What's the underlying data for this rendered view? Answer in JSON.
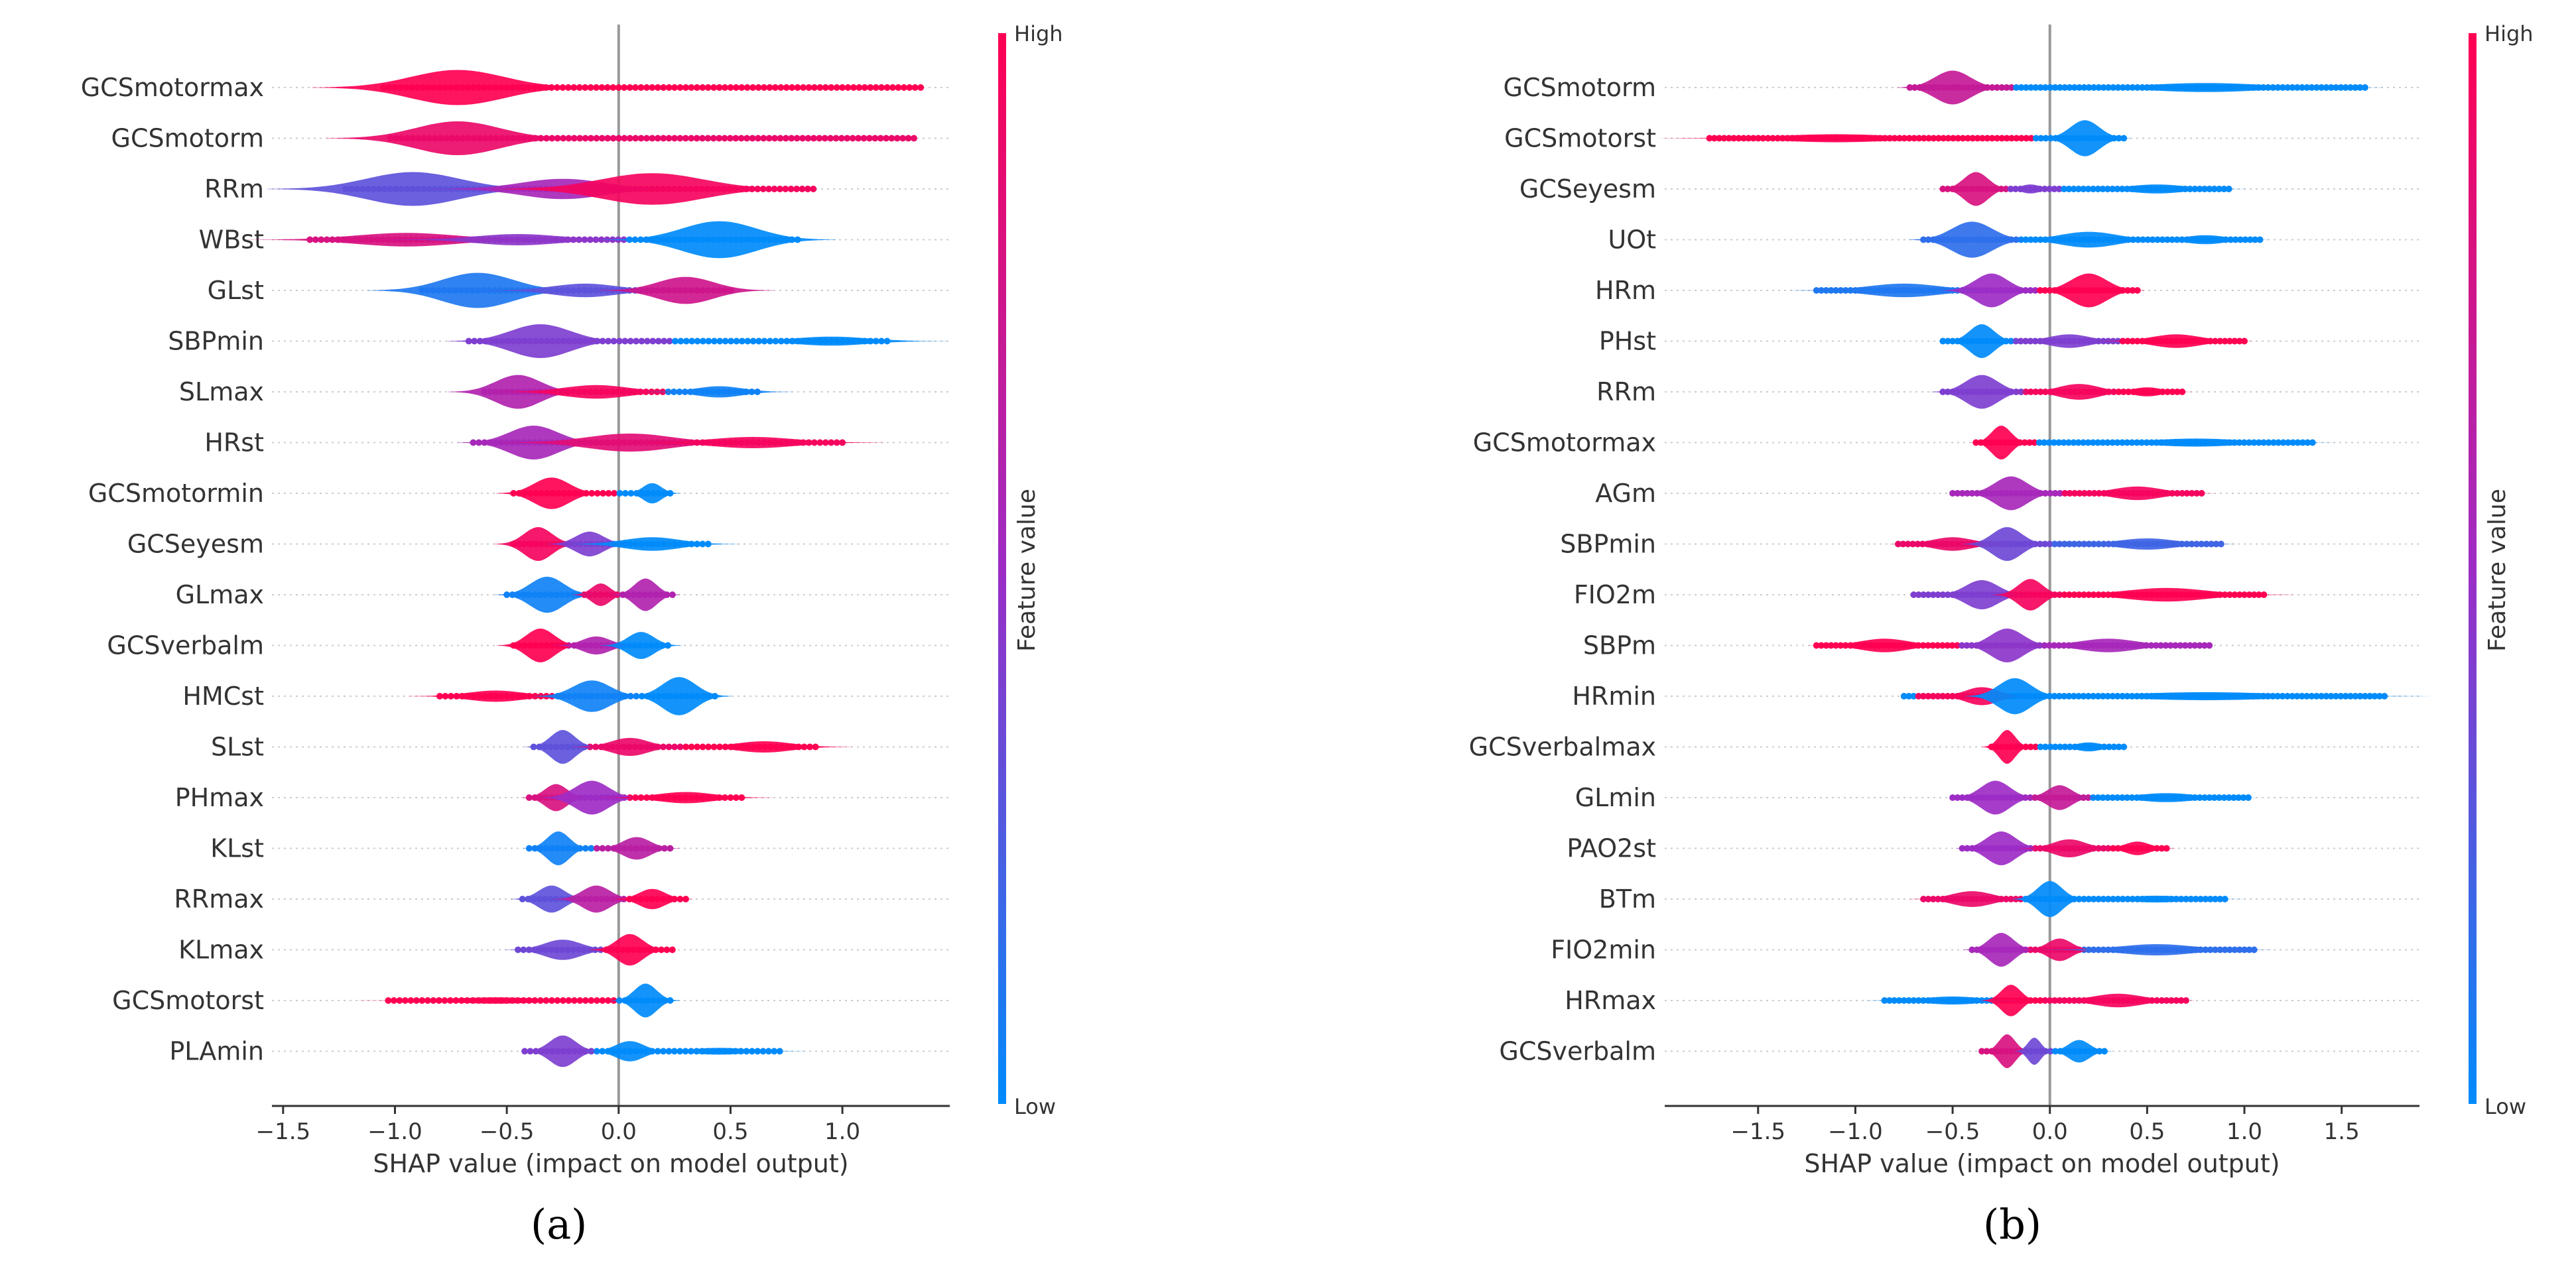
{
  "chart_data": [
    {
      "type": "violin",
      "panel_label": "(a)",
      "xlabel": "SHAP value (impact on model output)",
      "xlim": [
        -1.55,
        1.48
      ],
      "xticks": [
        -1.5,
        -1.0,
        -0.5,
        0.0,
        0.5,
        1.0
      ],
      "xtick_labels": [
        "−1.5",
        "−1.0",
        "−0.5",
        "0.0",
        "0.5",
        "1.0"
      ],
      "colorbar": {
        "label": "Feature value",
        "high": "High",
        "low": "Low",
        "high_color": "#ff0052",
        "mid_color": "#9d2cc5",
        "low_color": "#008bfb"
      },
      "features": [
        {
          "name": "GCSmotormax",
          "low": -1.05,
          "high": 1.35,
          "bulges": [
            {
              "x": -0.72,
              "w": 0.5,
              "h": 0.78,
              "c": 0
            }
          ]
        },
        {
          "name": "GCSmotorm",
          "low": -1.02,
          "high": 1.32,
          "bulges": [
            {
              "x": -0.72,
              "w": 0.45,
              "h": 0.75,
              "c": 0.1
            }
          ]
        },
        {
          "name": "RRm",
          "low": -1.22,
          "high": 0.87,
          "bulges": [
            {
              "x": -0.92,
              "w": 0.5,
              "h": 0.75,
              "c": 0.7
            },
            {
              "x": -0.25,
              "w": 0.45,
              "h": 0.45,
              "c": 0.45
            },
            {
              "x": 0.15,
              "w": 0.55,
              "h": 0.7,
              "c": 0.05
            }
          ]
        },
        {
          "name": "WBst",
          "low": -1.38,
          "high": 0.8,
          "bulges": [
            {
              "x": -0.95,
              "w": 0.55,
              "h": 0.3,
              "c": 0.2
            },
            {
              "x": -0.45,
              "w": 0.45,
              "h": 0.25,
              "c": 0.55
            },
            {
              "x": 0.45,
              "w": 0.4,
              "h": 0.82,
              "c": 1
            }
          ]
        },
        {
          "name": "GLst",
          "low": -0.88,
          "high": 0.5,
          "bulges": [
            {
              "x": -0.63,
              "w": 0.38,
              "h": 0.78,
              "c": 0.9
            },
            {
              "x": -0.15,
              "w": 0.35,
              "h": 0.3,
              "c": 0.7
            },
            {
              "x": 0.3,
              "w": 0.3,
              "h": 0.6,
              "c": 0.25
            }
          ]
        },
        {
          "name": "SBPmin",
          "low": -0.67,
          "high": 1.2,
          "bulges": [
            {
              "x": -0.35,
              "w": 0.32,
              "h": 0.75,
              "c": 0.6
            },
            {
              "x": 0.95,
              "w": 0.4,
              "h": 0.2,
              "c": 1
            }
          ]
        },
        {
          "name": "SLmax",
          "low": -0.6,
          "high": 0.62,
          "bulges": [
            {
              "x": -0.45,
              "w": 0.24,
              "h": 0.75,
              "c": 0.4
            },
            {
              "x": -0.1,
              "w": 0.35,
              "h": 0.3,
              "c": 0.05
            },
            {
              "x": 0.45,
              "w": 0.25,
              "h": 0.25,
              "c": 0.95
            }
          ]
        },
        {
          "name": "HRst",
          "low": -0.65,
          "high": 1.0,
          "bulges": [
            {
              "x": -0.38,
              "w": 0.26,
              "h": 0.75,
              "c": 0.45
            },
            {
              "x": 0.05,
              "w": 0.45,
              "h": 0.4,
              "c": 0.15
            },
            {
              "x": 0.6,
              "w": 0.45,
              "h": 0.25,
              "c": 0.05
            }
          ]
        },
        {
          "name": "GCSmotormin",
          "low": -0.47,
          "high": 0.23,
          "bulges": [
            {
              "x": -0.3,
              "w": 0.19,
              "h": 0.7,
              "c": 0
            },
            {
              "x": 0.15,
              "w": 0.1,
              "h": 0.45,
              "c": 1
            }
          ]
        },
        {
          "name": "GCSeyesm",
          "low": -0.47,
          "high": 0.4,
          "bulges": [
            {
              "x": -0.36,
              "w": 0.15,
              "h": 0.75,
              "c": 0.05
            },
            {
              "x": -0.13,
              "w": 0.15,
              "h": 0.55,
              "c": 0.6
            },
            {
              "x": 0.15,
              "w": 0.3,
              "h": 0.3,
              "c": 1
            }
          ]
        },
        {
          "name": "GLmax",
          "low": -0.5,
          "high": 0.24,
          "bulges": [
            {
              "x": -0.32,
              "w": 0.18,
              "h": 0.8,
              "c": 0.95
            },
            {
              "x": -0.08,
              "w": 0.1,
              "h": 0.5,
              "c": 0.1
            },
            {
              "x": 0.12,
              "w": 0.12,
              "h": 0.72,
              "c": 0.4
            }
          ]
        },
        {
          "name": "GCSverbalm",
          "low": -0.47,
          "high": 0.22,
          "bulges": [
            {
              "x": -0.35,
              "w": 0.15,
              "h": 0.75,
              "c": 0
            },
            {
              "x": -0.1,
              "w": 0.15,
              "h": 0.4,
              "c": 0.4
            },
            {
              "x": 0.1,
              "w": 0.14,
              "h": 0.6,
              "c": 1
            }
          ]
        },
        {
          "name": "HMCst",
          "low": -0.8,
          "high": 0.43,
          "bulges": [
            {
              "x": -0.55,
              "w": 0.3,
              "h": 0.25,
              "c": 0
            },
            {
              "x": -0.12,
              "w": 0.2,
              "h": 0.7,
              "c": 0.95
            },
            {
              "x": 0.27,
              "w": 0.18,
              "h": 0.85,
              "c": 1
            }
          ]
        },
        {
          "name": "SLst",
          "low": -0.38,
          "high": 0.88,
          "bulges": [
            {
              "x": -0.25,
              "w": 0.13,
              "h": 0.75,
              "c": 0.7
            },
            {
              "x": 0.05,
              "w": 0.2,
              "h": 0.4,
              "c": 0.1
            },
            {
              "x": 0.65,
              "w": 0.3,
              "h": 0.25,
              "c": 0
            }
          ]
        },
        {
          "name": "PHmax",
          "low": -0.4,
          "high": 0.55,
          "bulges": [
            {
              "x": -0.28,
              "w": 0.12,
              "h": 0.6,
              "c": 0.2
            },
            {
              "x": -0.12,
              "w": 0.18,
              "h": 0.75,
              "c": 0.5
            },
            {
              "x": 0.3,
              "w": 0.3,
              "h": 0.25,
              "c": 0
            }
          ]
        },
        {
          "name": "KLst",
          "low": -0.4,
          "high": 0.23,
          "bulges": [
            {
              "x": -0.27,
              "w": 0.12,
              "h": 0.75,
              "c": 0.95
            },
            {
              "x": 0.08,
              "w": 0.15,
              "h": 0.5,
              "c": 0.35
            }
          ]
        },
        {
          "name": "RRmax",
          "low": -0.43,
          "high": 0.3,
          "bulges": [
            {
              "x": -0.3,
              "w": 0.14,
              "h": 0.6,
              "c": 0.7
            },
            {
              "x": -0.1,
              "w": 0.15,
              "h": 0.6,
              "c": 0.35
            },
            {
              "x": 0.15,
              "w": 0.14,
              "h": 0.45,
              "c": 0
            }
          ]
        },
        {
          "name": "KLmax",
          "low": -0.45,
          "high": 0.24,
          "bulges": [
            {
              "x": -0.25,
              "w": 0.2,
              "h": 0.45,
              "c": 0.65
            },
            {
              "x": 0.05,
              "w": 0.14,
              "h": 0.7,
              "c": 0
            }
          ]
        },
        {
          "name": "GCSmotorst",
          "low": -1.03,
          "high": 0.23,
          "bulges": [
            {
              "x": -0.55,
              "w": 0.48,
              "h": 0.14,
              "c": 0
            },
            {
              "x": 0.12,
              "w": 0.12,
              "h": 0.75,
              "c": 1
            }
          ]
        },
        {
          "name": "PLAmin",
          "low": -0.42,
          "high": 0.72,
          "bulges": [
            {
              "x": -0.25,
              "w": 0.14,
              "h": 0.7,
              "c": 0.6
            },
            {
              "x": 0.05,
              "w": 0.15,
              "h": 0.45,
              "c": 1
            },
            {
              "x": 0.45,
              "w": 0.3,
              "h": 0.15,
              "c": 1
            }
          ]
        }
      ]
    },
    {
      "type": "violin",
      "panel_label": "(b)",
      "xlabel": "SHAP value (impact on model output)",
      "xlim": [
        -1.98,
        1.9
      ],
      "xticks": [
        -1.5,
        -1.0,
        -0.5,
        0.0,
        0.5,
        1.0,
        1.5
      ],
      "xtick_labels": [
        "−1.5",
        "−1.0",
        "−0.5",
        "0.0",
        "0.5",
        "1.0",
        "1.5"
      ],
      "colorbar": {
        "label": "Feature value",
        "high": "High",
        "low": "Low",
        "high_color": "#ff0052",
        "mid_color": "#9d2cc5",
        "low_color": "#008bfb"
      },
      "features": [
        {
          "name": "GCSmotorm",
          "low": -0.72,
          "high": 1.62,
          "bulges": [
            {
              "x": -0.5,
              "w": 0.22,
              "h": 0.75,
              "c": 0.3
            },
            {
              "x": 0.8,
              "w": 0.7,
              "h": 0.2,
              "c": 1
            }
          ]
        },
        {
          "name": "GCSmotorst",
          "low": -1.75,
          "high": 0.38,
          "bulges": [
            {
              "x": -1.1,
              "w": 0.7,
              "h": 0.18,
              "c": 0
            },
            {
              "x": 0.18,
              "w": 0.18,
              "h": 0.8,
              "c": 1
            }
          ]
        },
        {
          "name": "GCSeyesm",
          "low": -0.55,
          "high": 0.92,
          "bulges": [
            {
              "x": -0.38,
              "w": 0.15,
              "h": 0.75,
              "c": 0.2
            },
            {
              "x": -0.1,
              "w": 0.12,
              "h": 0.2,
              "c": 0.6
            },
            {
              "x": 0.55,
              "w": 0.35,
              "h": 0.2,
              "c": 1
            }
          ]
        },
        {
          "name": "UOt",
          "low": -0.65,
          "high": 1.08,
          "bulges": [
            {
              "x": -0.4,
              "w": 0.25,
              "h": 0.8,
              "c": 0.85
            },
            {
              "x": 0.2,
              "w": 0.35,
              "h": 0.35,
              "c": 1
            },
            {
              "x": 0.8,
              "w": 0.25,
              "h": 0.2,
              "c": 1
            }
          ]
        },
        {
          "name": "HRm",
          "low": -1.2,
          "high": 0.45,
          "bulges": [
            {
              "x": -0.75,
              "w": 0.45,
              "h": 0.3,
              "c": 0.9
            },
            {
              "x": -0.3,
              "w": 0.2,
              "h": 0.75,
              "c": 0.5
            },
            {
              "x": 0.2,
              "w": 0.22,
              "h": 0.75,
              "c": 0
            }
          ]
        },
        {
          "name": "PHst",
          "low": -0.55,
          "high": 1.0,
          "bulges": [
            {
              "x": -0.35,
              "w": 0.15,
              "h": 0.75,
              "c": 1
            },
            {
              "x": 0.1,
              "w": 0.25,
              "h": 0.3,
              "c": 0.6
            },
            {
              "x": 0.65,
              "w": 0.3,
              "h": 0.3,
              "c": 0
            }
          ]
        },
        {
          "name": "RRm",
          "low": -0.55,
          "high": 0.68,
          "bulges": [
            {
              "x": -0.35,
              "w": 0.2,
              "h": 0.75,
              "c": 0.6
            },
            {
              "x": 0.15,
              "w": 0.25,
              "h": 0.35,
              "c": 0.05
            },
            {
              "x": 0.5,
              "w": 0.18,
              "h": 0.2,
              "c": 0
            }
          ]
        },
        {
          "name": "GCSmotormax",
          "low": -0.38,
          "high": 1.35,
          "bulges": [
            {
              "x": -0.25,
              "w": 0.12,
              "h": 0.75,
              "c": 0
            },
            {
              "x": 0.75,
              "w": 0.55,
              "h": 0.18,
              "c": 1
            }
          ]
        },
        {
          "name": "AGm",
          "low": -0.5,
          "high": 0.78,
          "bulges": [
            {
              "x": -0.2,
              "w": 0.2,
              "h": 0.75,
              "c": 0.45
            },
            {
              "x": 0.45,
              "w": 0.3,
              "h": 0.3,
              "c": 0.05
            }
          ]
        },
        {
          "name": "SBPmin",
          "low": -0.78,
          "high": 0.88,
          "bulges": [
            {
              "x": -0.5,
              "w": 0.25,
              "h": 0.3,
              "c": 0.1
            },
            {
              "x": -0.22,
              "w": 0.18,
              "h": 0.75,
              "c": 0.65
            },
            {
              "x": 0.5,
              "w": 0.35,
              "h": 0.25,
              "c": 0.8
            }
          ]
        },
        {
          "name": "FIO2m",
          "low": -0.7,
          "high": 1.1,
          "bulges": [
            {
              "x": -0.35,
              "w": 0.2,
              "h": 0.65,
              "c": 0.6
            },
            {
              "x": -0.1,
              "w": 0.15,
              "h": 0.7,
              "c": 0.05
            },
            {
              "x": 0.6,
              "w": 0.5,
              "h": 0.3,
              "c": 0
            }
          ]
        },
        {
          "name": "SBPm",
          "low": -1.2,
          "high": 0.82,
          "bulges": [
            {
              "x": -0.85,
              "w": 0.3,
              "h": 0.3,
              "c": 0
            },
            {
              "x": -0.22,
              "w": 0.2,
              "h": 0.75,
              "c": 0.55
            },
            {
              "x": 0.3,
              "w": 0.35,
              "h": 0.3,
              "c": 0.45
            }
          ]
        },
        {
          "name": "HRmin",
          "low": -0.75,
          "high": 1.72,
          "bulges": [
            {
              "x": -0.35,
              "w": 0.2,
              "h": 0.4,
              "c": 0.05
            },
            {
              "x": -0.18,
              "w": 0.2,
              "h": 0.8,
              "c": 1
            },
            {
              "x": 0.8,
              "w": 0.9,
              "h": 0.18,
              "c": 1
            }
          ]
        },
        {
          "name": "GCSverbalmax",
          "low": -0.3,
          "high": 0.38,
          "bulges": [
            {
              "x": -0.22,
              "w": 0.1,
              "h": 0.75,
              "c": 0
            },
            {
              "x": 0.2,
              "w": 0.16,
              "h": 0.2,
              "c": 1
            }
          ]
        },
        {
          "name": "GLmin",
          "low": -0.5,
          "high": 1.02,
          "bulges": [
            {
              "x": -0.28,
              "w": 0.18,
              "h": 0.75,
              "c": 0.5
            },
            {
              "x": 0.05,
              "w": 0.15,
              "h": 0.55,
              "c": 0.3
            },
            {
              "x": 0.6,
              "w": 0.35,
              "h": 0.2,
              "c": 1
            }
          ]
        },
        {
          "name": "PAO2st",
          "low": -0.45,
          "high": 0.6,
          "bulges": [
            {
              "x": -0.25,
              "w": 0.18,
              "h": 0.75,
              "c": 0.5
            },
            {
              "x": 0.1,
              "w": 0.2,
              "h": 0.4,
              "c": 0.1
            },
            {
              "x": 0.45,
              "w": 0.15,
              "h": 0.3,
              "c": 0
            }
          ]
        },
        {
          "name": "BTm",
          "low": -0.65,
          "high": 0.9,
          "bulges": [
            {
              "x": -0.4,
              "w": 0.25,
              "h": 0.35,
              "c": 0.1
            },
            {
              "x": 0.0,
              "w": 0.15,
              "h": 0.8,
              "c": 1
            },
            {
              "x": 0.55,
              "w": 0.35,
              "h": 0.15,
              "c": 1
            }
          ]
        },
        {
          "name": "FIO2min",
          "low": -0.4,
          "high": 1.05,
          "bulges": [
            {
              "x": -0.25,
              "w": 0.15,
              "h": 0.75,
              "c": 0.45
            },
            {
              "x": 0.05,
              "w": 0.15,
              "h": 0.5,
              "c": 0.1
            },
            {
              "x": 0.55,
              "w": 0.45,
              "h": 0.25,
              "c": 0.85
            }
          ]
        },
        {
          "name": "HRmax",
          "low": -0.85,
          "high": 0.7,
          "bulges": [
            {
              "x": -0.5,
              "w": 0.35,
              "h": 0.18,
              "c": 1
            },
            {
              "x": -0.2,
              "w": 0.12,
              "h": 0.7,
              "c": 0
            },
            {
              "x": 0.35,
              "w": 0.3,
              "h": 0.3,
              "c": 0.05
            }
          ]
        },
        {
          "name": "GCSverbalm",
          "low": -0.35,
          "high": 0.28,
          "bulges": [
            {
              "x": -0.22,
              "w": 0.1,
              "h": 0.75,
              "c": 0.2
            },
            {
              "x": -0.08,
              "w": 0.08,
              "h": 0.6,
              "c": 0.65
            },
            {
              "x": 0.15,
              "w": 0.13,
              "h": 0.5,
              "c": 1
            }
          ]
        }
      ]
    }
  ]
}
